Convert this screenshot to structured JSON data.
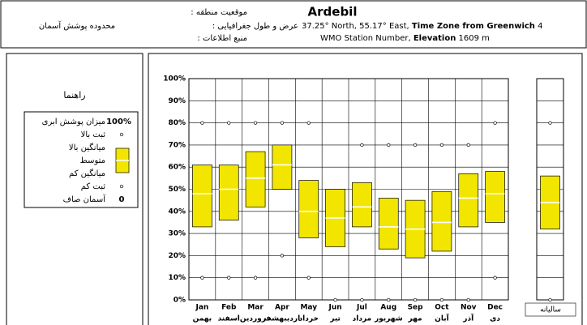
{
  "header": {
    "left_title": "محدوده پوشش آسمان",
    "location_label": ": موقعیت منطقه",
    "station": "Ardebil",
    "coords_label": ": عرض و طول جغرافیایی",
    "coords": "37.25° North, 55.17° East,",
    "tz_label": "Time Zone from Greenwich",
    "tz": "4",
    "source_label": ": منبع اطلاعات",
    "source": "WMO Station Number,",
    "elev_label": "Elevation",
    "elev": "1609 m"
  },
  "chart_data": {
    "type": "range",
    "categories": [
      "Jan",
      "Feb",
      "Mar",
      "Apr",
      "May",
      "Jun",
      "Jul",
      "Aug",
      "Sep",
      "Oct",
      "Nov",
      "Dec"
    ],
    "categories_fa": [
      "بهمن",
      "اسفند",
      "فروردین",
      "اردیبهشت",
      "خرداد",
      "تیر",
      "مرداد",
      "شهریور",
      "مهر",
      "آبان",
      "آذر",
      "دی"
    ],
    "ylim": [
      0,
      100
    ],
    "yticks": [
      {
        "value": 0,
        "label": "0%"
      },
      {
        "value": 10,
        "label": "10%"
      },
      {
        "value": 20,
        "label": "20%"
      },
      {
        "value": 30,
        "label": "30%"
      },
      {
        "value": 40,
        "label": "40%"
      },
      {
        "value": 50,
        "label": "50%"
      },
      {
        "value": 60,
        "label": "60%"
      },
      {
        "value": 70,
        "label": "70%"
      },
      {
        "value": 80,
        "label": "80%"
      },
      {
        "value": 90,
        "label": "90%"
      },
      {
        "value": 100,
        "label": "100%"
      }
    ],
    "grid": true,
    "box_color": "#f2e600",
    "series": [
      {
        "name": "ثبت بالا",
        "values": [
          80,
          80,
          80,
          80,
          80,
          null,
          70,
          70,
          70,
          70,
          70,
          80
        ]
      },
      {
        "name": "میانگین بالا",
        "values": [
          61,
          61,
          67,
          70,
          54,
          50,
          53,
          46,
          45,
          49,
          57,
          58
        ]
      },
      {
        "name": "متوسط",
        "values": [
          48,
          50,
          55,
          61,
          40,
          37,
          42,
          33,
          32,
          35,
          46,
          48
        ]
      },
      {
        "name": "میانگین کم",
        "values": [
          33,
          36,
          42,
          50,
          28,
          24,
          33,
          23,
          19,
          22,
          33,
          35
        ]
      },
      {
        "name": "ثبت کم",
        "values": [
          10,
          10,
          10,
          20,
          10,
          0,
          0,
          0,
          0,
          0,
          0,
          10
        ]
      }
    ],
    "annual_label": "سالیانه",
    "annual_values": [
      80,
      56,
      44,
      32,
      0
    ],
    "legend": {
      "title": "راهنما",
      "top_value": "100%",
      "top_name": "میزان پوشش ابری",
      "bottom_value": "0",
      "bottom_name": "آسمان صاف"
    }
  }
}
